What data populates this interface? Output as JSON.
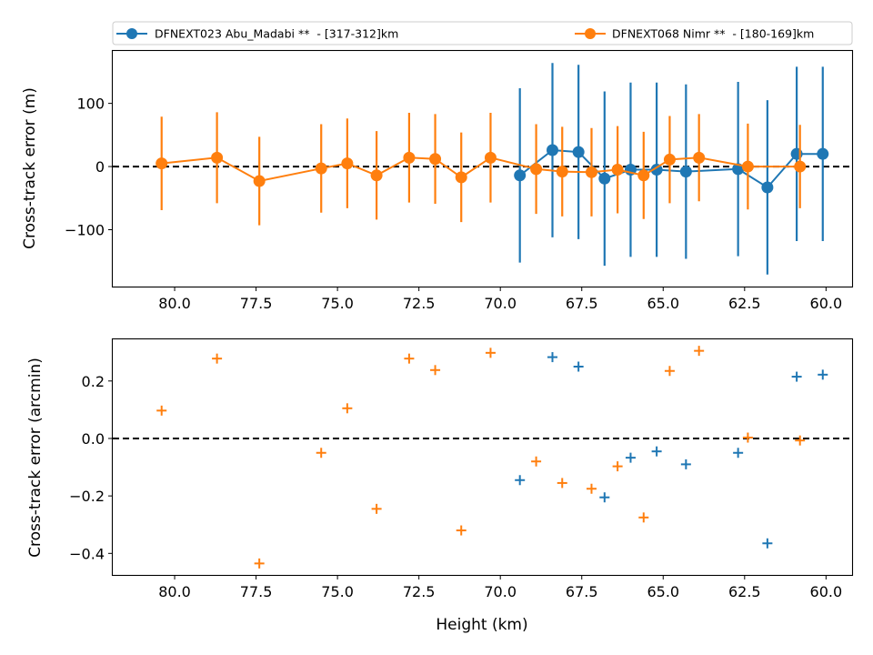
{
  "colors": {
    "series1": "#1f77b4",
    "series2": "#ff7f0e",
    "zero_line": "#000000",
    "axes": "#000000"
  },
  "legend": {
    "placement": "top, above plots, two columns",
    "entries": [
      {
        "label": "DFNEXT023 Abu_Madabi **  - [317-312]km",
        "color": "#1f77b4",
        "marker": "circle"
      },
      {
        "label": "DFNEXT068 Nimr **  - [180-169]km",
        "color": "#ff7f0e",
        "marker": "circle"
      }
    ]
  },
  "chart_data": [
    {
      "type": "line",
      "ylabel": "Cross-track error (m)",
      "xlabel": "",
      "x_inverted": true,
      "xlim": [
        81.9,
        59.2
      ],
      "ylim": [
        -190,
        183
      ],
      "xticks": [
        80.0,
        77.5,
        75.0,
        72.5,
        70.0,
        67.5,
        65.0,
        62.5,
        60.0
      ],
      "xtick_labels": [
        "80.0",
        "77.5",
        "75.0",
        "72.5",
        "70.0",
        "67.5",
        "65.0",
        "62.5",
        "60.0"
      ],
      "yticks": [
        100,
        0,
        -100
      ],
      "ytick_labels": [
        "100",
        "0",
        "−100"
      ],
      "reference_line": {
        "y": 0,
        "style": "dashed"
      },
      "series": [
        {
          "name": "DFNEXT023 Abu_Madabi **  - [317-312]km",
          "color": "#1f77b4",
          "marker": "circle",
          "error_bars": true,
          "points": [
            {
              "x": 69.4,
              "y": -14,
              "err": 138
            },
            {
              "x": 68.4,
              "y": 26,
              "err": 138
            },
            {
              "x": 67.6,
              "y": 23,
              "err": 138
            },
            {
              "x": 66.8,
              "y": -19,
              "err": 138
            },
            {
              "x": 66.0,
              "y": -5,
              "err": 138
            },
            {
              "x": 65.2,
              "y": -5,
              "err": 138
            },
            {
              "x": 64.3,
              "y": -8,
              "err": 138
            },
            {
              "x": 62.7,
              "y": -4,
              "err": 138
            },
            {
              "x": 61.8,
              "y": -33,
              "err": 138
            },
            {
              "x": 60.9,
              "y": 20,
              "err": 138
            },
            {
              "x": 60.1,
              "y": 20,
              "err": 138
            }
          ]
        },
        {
          "name": "DFNEXT068 Nimr **  - [180-169]km",
          "color": "#ff7f0e",
          "marker": "circle",
          "error_bars": true,
          "points": [
            {
              "x": 80.4,
              "y": 5,
              "err": 74
            },
            {
              "x": 78.7,
              "y": 14,
              "err": 72
            },
            {
              "x": 77.4,
              "y": -23,
              "err": 70
            },
            {
              "x": 75.5,
              "y": -3,
              "err": 70
            },
            {
              "x": 74.7,
              "y": 5,
              "err": 71
            },
            {
              "x": 73.8,
              "y": -14,
              "err": 70
            },
            {
              "x": 72.8,
              "y": 14,
              "err": 71
            },
            {
              "x": 72.0,
              "y": 12,
              "err": 71
            },
            {
              "x": 71.2,
              "y": -17,
              "err": 71
            },
            {
              "x": 70.3,
              "y": 14,
              "err": 71
            },
            {
              "x": 68.9,
              "y": -4,
              "err": 71
            },
            {
              "x": 68.1,
              "y": -8,
              "err": 71
            },
            {
              "x": 67.2,
              "y": -9,
              "err": 70
            },
            {
              "x": 66.4,
              "y": -5,
              "err": 69
            },
            {
              "x": 65.6,
              "y": -14,
              "err": 69
            },
            {
              "x": 64.8,
              "y": 11,
              "err": 69
            },
            {
              "x": 63.9,
              "y": 14,
              "err": 69
            },
            {
              "x": 62.4,
              "y": 0,
              "err": 68
            },
            {
              "x": 60.8,
              "y": 0,
              "err": 66
            }
          ]
        }
      ]
    },
    {
      "type": "scatter",
      "ylabel": "Cross-track error (arcmin)",
      "xlabel": "Height (km)",
      "x_inverted": true,
      "xlim": [
        81.9,
        59.2
      ],
      "ylim": [
        -0.475,
        0.345
      ],
      "xticks": [
        80.0,
        77.5,
        75.0,
        72.5,
        70.0,
        67.5,
        65.0,
        62.5,
        60.0
      ],
      "xtick_labels": [
        "80.0",
        "77.5",
        "75.0",
        "72.5",
        "70.0",
        "67.5",
        "65.0",
        "62.5",
        "60.0"
      ],
      "yticks": [
        0.2,
        0.0,
        -0.2,
        -0.4
      ],
      "ytick_labels": [
        "0.2",
        "0.0",
        "−0.2",
        "−0.4"
      ],
      "reference_line": {
        "y": 0,
        "style": "dashed"
      },
      "series": [
        {
          "name": "DFNEXT023 Abu_Madabi **  - [317-312]km",
          "color": "#1f77b4",
          "marker": "plus",
          "points": [
            {
              "x": 69.4,
              "y": -0.145
            },
            {
              "x": 68.4,
              "y": 0.283
            },
            {
              "x": 67.6,
              "y": 0.25
            },
            {
              "x": 66.8,
              "y": -0.205
            },
            {
              "x": 66.0,
              "y": -0.067
            },
            {
              "x": 65.2,
              "y": -0.045
            },
            {
              "x": 64.3,
              "y": -0.09
            },
            {
              "x": 62.7,
              "y": -0.05
            },
            {
              "x": 61.8,
              "y": -0.365
            },
            {
              "x": 60.9,
              "y": 0.215
            },
            {
              "x": 60.1,
              "y": 0.222
            }
          ]
        },
        {
          "name": "DFNEXT068 Nimr **  - [180-169]km",
          "color": "#ff7f0e",
          "marker": "plus",
          "points": [
            {
              "x": 80.4,
              "y": 0.097
            },
            {
              "x": 78.7,
              "y": 0.278
            },
            {
              "x": 77.4,
              "y": -0.435
            },
            {
              "x": 75.5,
              "y": -0.05
            },
            {
              "x": 74.7,
              "y": 0.105
            },
            {
              "x": 73.8,
              "y": -0.245
            },
            {
              "x": 72.8,
              "y": 0.278
            },
            {
              "x": 72.0,
              "y": 0.238
            },
            {
              "x": 71.2,
              "y": -0.32
            },
            {
              "x": 70.3,
              "y": 0.298
            },
            {
              "x": 68.9,
              "y": -0.08
            },
            {
              "x": 68.1,
              "y": -0.155
            },
            {
              "x": 67.2,
              "y": -0.175
            },
            {
              "x": 66.4,
              "y": -0.097
            },
            {
              "x": 65.6,
              "y": -0.275
            },
            {
              "x": 64.8,
              "y": 0.235
            },
            {
              "x": 63.9,
              "y": 0.305
            },
            {
              "x": 62.4,
              "y": 0.003
            },
            {
              "x": 60.8,
              "y": -0.007
            }
          ]
        }
      ]
    }
  ]
}
